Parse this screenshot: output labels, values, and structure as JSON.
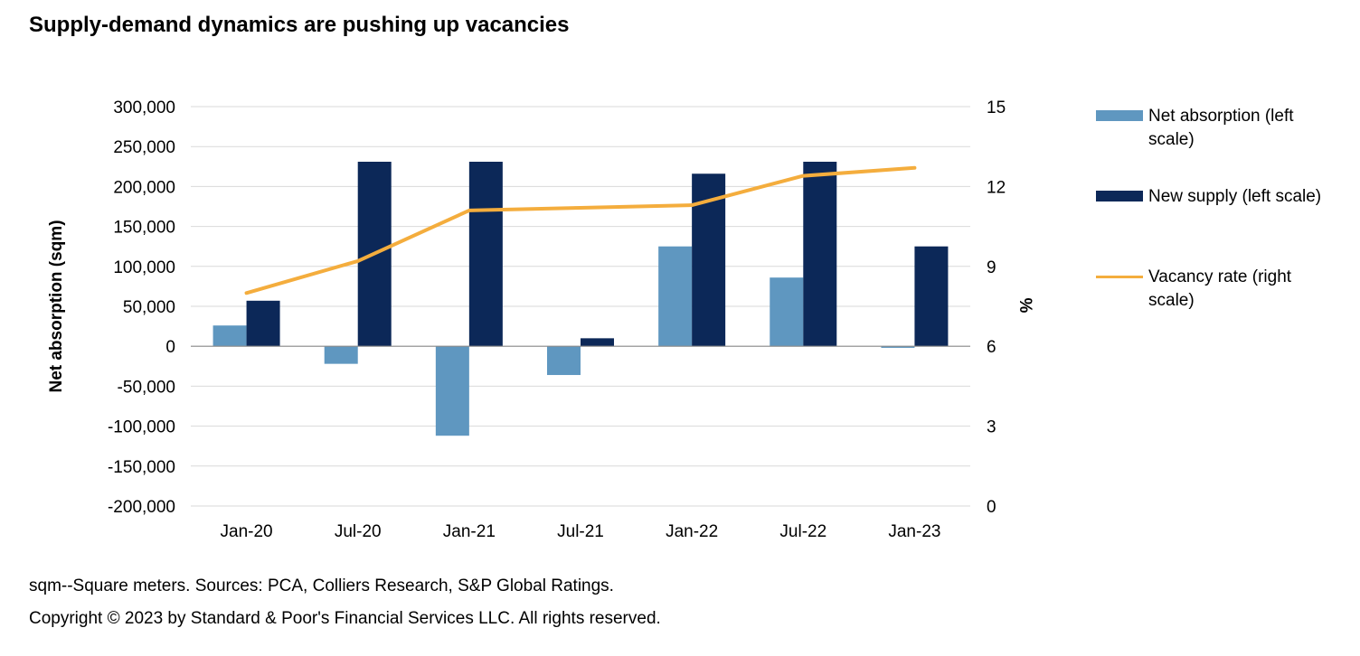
{
  "title": "Supply-demand dynamics are pushing up vacancies",
  "footnotes": {
    "source": "sqm--Square meters. Sources: PCA, Colliers Research, S&P Global Ratings.",
    "copyright": "Copyright © 2023 by Standard & Poor's Financial Services LLC. All rights reserved."
  },
  "legend": [
    {
      "label": "Net absorption  (left scale)",
      "color": "#5f97c0",
      "kind": "bar"
    },
    {
      "label": "New supply (left scale)",
      "color": "#0c2858",
      "kind": "bar"
    },
    {
      "label": "Vacancy rate (right scale)",
      "color": "#f4ad3d",
      "kind": "line"
    }
  ],
  "chart_data": {
    "type": "bar+line",
    "categories": [
      "Jan-20",
      "Jul-20",
      "Jan-21",
      "Jul-21",
      "Jan-22",
      "Jul-22",
      "Jan-23"
    ],
    "series": [
      {
        "name": "Net absorption  (left scale)",
        "type": "bar",
        "axis": "left",
        "color": "#5f97c0",
        "values": [
          26000,
          -22000,
          -112000,
          -36000,
          125000,
          86000,
          -2000
        ]
      },
      {
        "name": "New supply (left scale)",
        "type": "bar",
        "axis": "left",
        "color": "#0c2858",
        "values": [
          57000,
          231000,
          231000,
          10000,
          216000,
          231000,
          125000
        ]
      },
      {
        "name": "Vacancy rate (right scale)",
        "type": "line",
        "axis": "right",
        "color": "#f4ad3d",
        "values": [
          8.0,
          9.2,
          11.1,
          11.2,
          11.3,
          12.4,
          12.7
        ]
      }
    ],
    "ylabel": "Net absorption (sqm)",
    "y2label": "%",
    "ylim": [
      -200000,
      300000
    ],
    "y2lim": [
      0,
      15
    ],
    "yticks": [
      "300,000",
      "250,000",
      "200,000",
      "150,000",
      "100,000",
      "50,000",
      "0",
      "-50,000",
      "-100,000",
      "-150,000",
      "-200,000"
    ],
    "y2ticks": [
      "15",
      "12",
      "9",
      "6",
      "3",
      "0"
    ],
    "grid": true,
    "legend_position": "right"
  }
}
